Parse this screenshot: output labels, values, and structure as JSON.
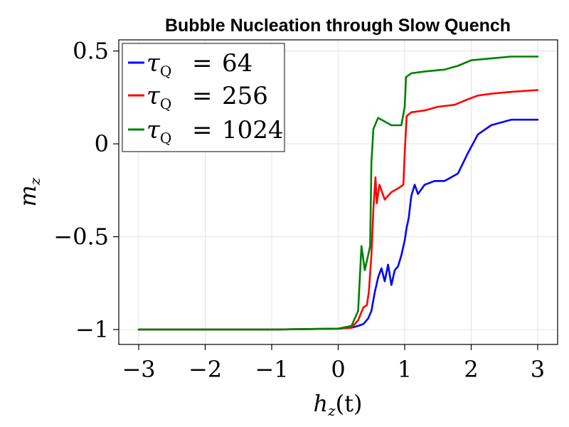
{
  "chart_data": {
    "type": "line",
    "title": "Bubble Nucleation through Slow Quench",
    "xlabel": "h_z(t)",
    "ylabel": "m_z",
    "xlim": [
      -3.3,
      3.3
    ],
    "ylim": [
      -1.08,
      0.56
    ],
    "xticks": [
      -3,
      -2,
      -1,
      0,
      1,
      2,
      3
    ],
    "xtick_labels": [
      "−3",
      "−2",
      "−1",
      "0",
      "1",
      "2",
      "3"
    ],
    "yticks": [
      -1,
      -0.5,
      0,
      0.5
    ],
    "ytick_labels": [
      "−1",
      "−0.5",
      "0",
      "0.5"
    ],
    "grid": true,
    "legend_position": "top-left",
    "series": [
      {
        "name": "τQ = 64",
        "color": "#0000ff",
        "points": [
          [
            -3,
            -1
          ],
          [
            -2,
            -1
          ],
          [
            -1,
            -1
          ],
          [
            0,
            -0.995
          ],
          [
            0.2,
            -0.99
          ],
          [
            0.3,
            -0.98
          ],
          [
            0.38,
            -0.97
          ],
          [
            0.45,
            -0.94
          ],
          [
            0.5,
            -0.9
          ],
          [
            0.55,
            -0.8
          ],
          [
            0.6,
            -0.72
          ],
          [
            0.65,
            -0.67
          ],
          [
            0.7,
            -0.74
          ],
          [
            0.75,
            -0.65
          ],
          [
            0.8,
            -0.76
          ],
          [
            0.85,
            -0.68
          ],
          [
            0.9,
            -0.66
          ],
          [
            0.95,
            -0.6
          ],
          [
            1.0,
            -0.52
          ],
          [
            1.03,
            -0.45
          ],
          [
            1.06,
            -0.4
          ],
          [
            1.1,
            -0.28
          ],
          [
            1.15,
            -0.22
          ],
          [
            1.2,
            -0.27
          ],
          [
            1.3,
            -0.22
          ],
          [
            1.45,
            -0.2
          ],
          [
            1.6,
            -0.2
          ],
          [
            1.8,
            -0.16
          ],
          [
            1.95,
            -0.05
          ],
          [
            2.1,
            0.05
          ],
          [
            2.3,
            0.1
          ],
          [
            2.6,
            0.13
          ],
          [
            3.0,
            0.13
          ]
        ]
      },
      {
        "name": "τQ = 256",
        "color": "#ff0000",
        "points": [
          [
            -3,
            -1
          ],
          [
            -2,
            -1
          ],
          [
            -1,
            -1
          ],
          [
            0,
            -0.995
          ],
          [
            0.2,
            -0.99
          ],
          [
            0.3,
            -0.95
          ],
          [
            0.38,
            -0.88
          ],
          [
            0.43,
            -0.87
          ],
          [
            0.46,
            -0.8
          ],
          [
            0.5,
            -0.6
          ],
          [
            0.53,
            -0.35
          ],
          [
            0.56,
            -0.18
          ],
          [
            0.58,
            -0.32
          ],
          [
            0.62,
            -0.22
          ],
          [
            0.7,
            -0.3
          ],
          [
            0.8,
            -0.26
          ],
          [
            0.9,
            -0.24
          ],
          [
            0.98,
            -0.22
          ],
          [
            1.0,
            -0.05
          ],
          [
            1.03,
            0.15
          ],
          [
            1.1,
            0.17
          ],
          [
            1.3,
            0.18
          ],
          [
            1.5,
            0.2
          ],
          [
            1.75,
            0.21
          ],
          [
            1.95,
            0.24
          ],
          [
            2.1,
            0.26
          ],
          [
            2.3,
            0.27
          ],
          [
            2.6,
            0.28
          ],
          [
            3.0,
            0.29
          ]
        ]
      },
      {
        "name": "τQ = 1024",
        "color": "#008000",
        "points": [
          [
            -3,
            -1
          ],
          [
            -2,
            -1
          ],
          [
            -1,
            -1
          ],
          [
            0,
            -0.995
          ],
          [
            0.2,
            -0.98
          ],
          [
            0.3,
            -0.9
          ],
          [
            0.35,
            -0.55
          ],
          [
            0.4,
            -0.68
          ],
          [
            0.45,
            -0.6
          ],
          [
            0.48,
            -0.55
          ],
          [
            0.5,
            -0.1
          ],
          [
            0.53,
            0.08
          ],
          [
            0.6,
            0.14
          ],
          [
            0.8,
            0.1
          ],
          [
            0.95,
            0.1
          ],
          [
            1.0,
            0.2
          ],
          [
            1.02,
            0.36
          ],
          [
            1.1,
            0.38
          ],
          [
            1.3,
            0.39
          ],
          [
            1.6,
            0.4
          ],
          [
            1.8,
            0.42
          ],
          [
            2.0,
            0.45
          ],
          [
            2.3,
            0.46
          ],
          [
            2.6,
            0.47
          ],
          [
            3.0,
            0.47
          ]
        ]
      }
    ]
  },
  "legend": {
    "entries": [
      {
        "sym": "τ",
        "sub": "Q",
        "eq": "=",
        "value": "64"
      },
      {
        "sym": "τ",
        "sub": "Q",
        "eq": "=",
        "value": "256"
      },
      {
        "sym": "τ",
        "sub": "Q",
        "eq": "=",
        "value": "1024"
      }
    ]
  },
  "axis_text": {
    "x_main": "h",
    "x_sub": "z",
    "x_arg": "(t)",
    "y_main": "m",
    "y_sub": "z"
  }
}
